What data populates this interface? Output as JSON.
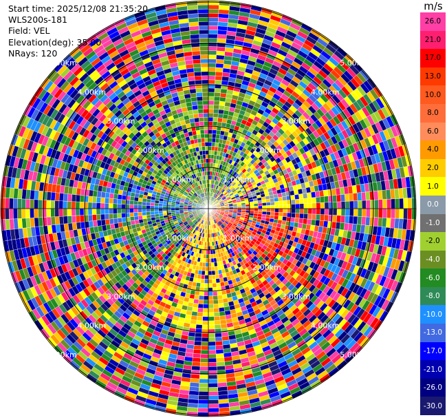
{
  "info": {
    "start_time": "Start time: 2025/12/08 21:35:20",
    "instrument": "WLS200s-181",
    "field": "Field: VEL",
    "elevation": "Elevation(deg): 35.00",
    "nrays": "NRays: 120"
  },
  "colorbar": {
    "unit": "m/s",
    "ticks": [
      "26.0",
      "21.0",
      "17.0",
      "13.0",
      "10.0",
      "8.0",
      "6.0",
      "4.0",
      "2.0",
      "1.0",
      "0.0",
      "-1.0",
      "-2.0",
      "-4.0",
      "-6.0",
      "-8.0",
      "-10.0",
      "-13.0",
      "-17.0",
      "-21.0",
      "-26.0",
      "-30.0"
    ],
    "colors": [
      "#ff3fa6",
      "#ff1f70",
      "#ff0000",
      "#ff3a00",
      "#ff5a1f",
      "#ff6e3a",
      "#ff8c5a",
      "#ff9a00",
      "#ffcc00",
      "#ffff00",
      "#8a9aa8",
      "#707070",
      "#a0d030",
      "#6b8e23",
      "#228b22",
      "#2e8b57",
      "#1e90ff",
      "#4169e1",
      "#0000ff",
      "#0000b0",
      "#000080",
      "#191970"
    ]
  },
  "range_rings": {
    "labels": [
      "1.00km",
      "2.00km",
      "3.00km",
      "4.00km",
      "5.00km"
    ]
  }
}
